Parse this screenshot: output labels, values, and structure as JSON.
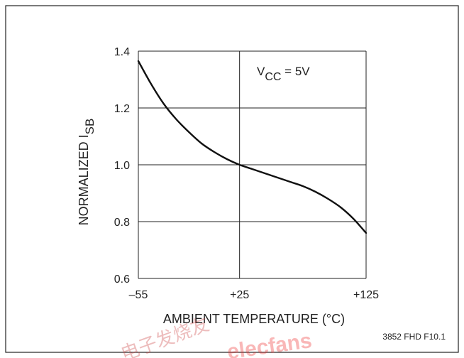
{
  "chart_data": {
    "type": "line",
    "title": "",
    "xlabel": "AMBIENT TEMPERATURE (°C)",
    "ylabel_main": "NORMALIZED I",
    "ylabel_sub": "SB",
    "annotation": {
      "main": "V",
      "sub": "CC",
      "rest": " = 5V"
    },
    "xlim": [
      -55,
      125
    ],
    "ylim": [
      0.6,
      1.4
    ],
    "x_ticks": [
      -55,
      25,
      125
    ],
    "x_tick_labels": [
      "–55",
      "+25",
      "+125"
    ],
    "y_ticks": [
      0.6,
      0.8,
      1.0,
      1.2,
      1.4
    ],
    "y_tick_labels": [
      "0.6",
      "0.8",
      "1.0",
      "1.2",
      "1.4"
    ],
    "grid": true,
    "series": [
      {
        "x": [
          -55,
          -45,
          -35,
          -25,
          -15,
          -5,
          5,
          15,
          25,
          35,
          45,
          55,
          65,
          75,
          85,
          95,
          105,
          115,
          125
        ],
        "y": [
          1.365,
          1.285,
          1.215,
          1.16,
          1.115,
          1.075,
          1.045,
          1.02,
          1.0,
          0.985,
          0.97,
          0.955,
          0.94,
          0.925,
          0.905,
          0.88,
          0.85,
          0.81,
          0.76
        ]
      }
    ],
    "colors": {
      "line": "#111111",
      "grid": "#222222"
    }
  },
  "figure_id": "3852 FHD F10.1",
  "watermark_text": "电子发烧友 elecfans.com"
}
